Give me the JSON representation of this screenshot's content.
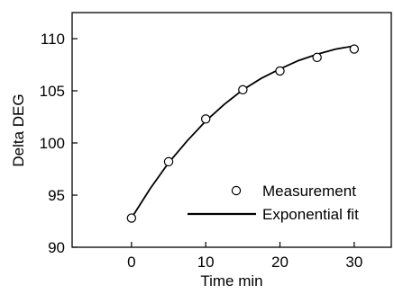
{
  "chart_data": {
    "type": "scatter",
    "xlabel": "Time min",
    "ylabel": "Delta DEG",
    "xlim": [
      -8,
      35
    ],
    "ylim": [
      90,
      112.5
    ],
    "xticks": [
      0,
      10,
      20,
      30
    ],
    "yticks": [
      90,
      95,
      100,
      105,
      110
    ],
    "grid": false,
    "legend_position": "bottom-right",
    "series": [
      {
        "name": "Measurement",
        "kind": "scatter",
        "marker": "open-circle",
        "x": [
          0,
          5,
          10,
          15,
          20,
          25,
          30
        ],
        "y": [
          92.8,
          98.2,
          102.3,
          105.1,
          106.9,
          108.2,
          109.0
        ]
      },
      {
        "name": "Exponential fit",
        "kind": "line",
        "color": "#000000",
        "x": [
          0,
          2.5,
          5,
          7.5,
          10,
          12.5,
          15,
          17.5,
          20,
          22.5,
          25,
          27.5,
          30
        ],
        "y": [
          92.8,
          95.6,
          98.1,
          100.2,
          102.1,
          103.7,
          105.1,
          106.2,
          107.1,
          107.9,
          108.5,
          109.0,
          109.3
        ]
      }
    ]
  }
}
